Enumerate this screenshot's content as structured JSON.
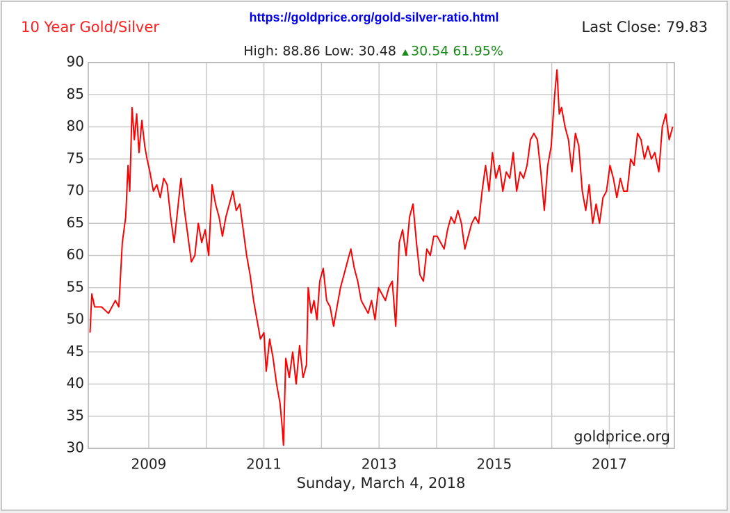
{
  "chart_data": {
    "type": "line",
    "title": "10 Year Gold/Silver",
    "url": "https://goldprice.org/gold-silver-ratio.html",
    "last_close": "Last Close: 79.83",
    "high_low": "High: 88.86 Low: 30.48",
    "change": "30.54 61.95%",
    "watermark": "goldprice.org",
    "xlabel": "Sunday, March 4, 2018",
    "color": "#ff0000",
    "grid": true,
    "xlim": [
      2007.95,
      2018.13
    ],
    "xticks": [
      2009,
      2011,
      2013,
      2015,
      2017
    ],
    "x_minor_ticks": [
      2010,
      2012,
      2014,
      2016,
      2018
    ],
    "ylim": [
      30,
      90
    ],
    "yticks": [
      30,
      35,
      40,
      45,
      50,
      55,
      60,
      65,
      70,
      75,
      80,
      85,
      90
    ],
    "x": [
      2007.98,
      2008.01,
      2008.06,
      2008.18,
      2008.3,
      2008.42,
      2008.48,
      2008.54,
      2008.6,
      2008.64,
      2008.67,
      2008.71,
      2008.75,
      2008.79,
      2008.83,
      2008.88,
      2008.93,
      2008.97,
      2009.02,
      2009.08,
      2009.14,
      2009.2,
      2009.26,
      2009.32,
      2009.38,
      2009.44,
      2009.5,
      2009.56,
      2009.62,
      2009.68,
      2009.74,
      2009.8,
      2009.86,
      2009.92,
      2009.98,
      2010.04,
      2010.1,
      2010.16,
      2010.22,
      2010.28,
      2010.34,
      2010.4,
      2010.46,
      2010.52,
      2010.58,
      2010.64,
      2010.7,
      2010.76,
      2010.82,
      2010.88,
      2010.94,
      2011.0,
      2011.04,
      2011.1,
      2011.16,
      2011.22,
      2011.28,
      2011.32,
      2011.34,
      2011.38,
      2011.44,
      2011.5,
      2011.56,
      2011.62,
      2011.68,
      2011.74,
      2011.77,
      2011.82,
      2011.87,
      2011.92,
      2011.97,
      2012.03,
      2012.09,
      2012.15,
      2012.21,
      2012.27,
      2012.33,
      2012.39,
      2012.45,
      2012.51,
      2012.57,
      2012.63,
      2012.69,
      2012.75,
      2012.81,
      2012.87,
      2012.93,
      2012.99,
      2013.05,
      2013.11,
      2013.17,
      2013.23,
      2013.29,
      2013.35,
      2013.41,
      2013.47,
      2013.53,
      2013.59,
      2013.65,
      2013.71,
      2013.77,
      2013.83,
      2013.89,
      2013.95,
      2014.01,
      2014.07,
      2014.13,
      2014.19,
      2014.25,
      2014.31,
      2014.37,
      2014.43,
      2014.49,
      2014.55,
      2014.61,
      2014.67,
      2014.73,
      2014.79,
      2014.85,
      2014.91,
      2014.97,
      2015.03,
      2015.09,
      2015.15,
      2015.21,
      2015.27,
      2015.33,
      2015.39,
      2015.45,
      2015.51,
      2015.57,
      2015.63,
      2015.69,
      2015.75,
      2015.81,
      2015.87,
      2015.93,
      2015.99,
      2016.05,
      2016.09,
      2016.13,
      2016.17,
      2016.23,
      2016.29,
      2016.35,
      2016.41,
      2016.47,
      2016.53,
      2016.59,
      2016.65,
      2016.71,
      2016.77,
      2016.83,
      2016.89,
      2016.95,
      2017.01,
      2017.07,
      2017.13,
      2017.19,
      2017.25,
      2017.31,
      2017.37,
      2017.43,
      2017.49,
      2017.55,
      2017.61,
      2017.67,
      2017.73,
      2017.79,
      2017.86,
      2017.92,
      2017.98,
      2018.04,
      2018.1
    ],
    "values": [
      48,
      54,
      52,
      52,
      51,
      53,
      52,
      62,
      66,
      74,
      70,
      83,
      78,
      82,
      76,
      81,
      77,
      75,
      73,
      70,
      71,
      69,
      72,
      71,
      66,
      62,
      67,
      72,
      67,
      63,
      59,
      60,
      65,
      62,
      64,
      60,
      71,
      68,
      66,
      63,
      66,
      68,
      70,
      67,
      68,
      64,
      60,
      57,
      53,
      50,
      47,
      48,
      42,
      47,
      44,
      40,
      37,
      33,
      30.48,
      44,
      41,
      45,
      40,
      46,
      41,
      43,
      55,
      51,
      53,
      50,
      56,
      58,
      53,
      52,
      49,
      52,
      55,
      57,
      59,
      61,
      58,
      56,
      53,
      52,
      51,
      53,
      50,
      55,
      54,
      53,
      55,
      56,
      49,
      62,
      64,
      60,
      66,
      68,
      62,
      57,
      56,
      61,
      60,
      63,
      63,
      62,
      61,
      64,
      66,
      65,
      67,
      65,
      61,
      63,
      65,
      66,
      65,
      70,
      74,
      70,
      76,
      72,
      74,
      70,
      73,
      72,
      76,
      70,
      73,
      72,
      74,
      78,
      79,
      78,
      73,
      67,
      74,
      77,
      85,
      88.86,
      82,
      83,
      80,
      78,
      73,
      79,
      77,
      70,
      67,
      71,
      65,
      68,
      65,
      69,
      70,
      74,
      72,
      69,
      72,
      70,
      70,
      75,
      74,
      79,
      78,
      75,
      77,
      75,
      76,
      73,
      80,
      82,
      78,
      80
    ]
  }
}
